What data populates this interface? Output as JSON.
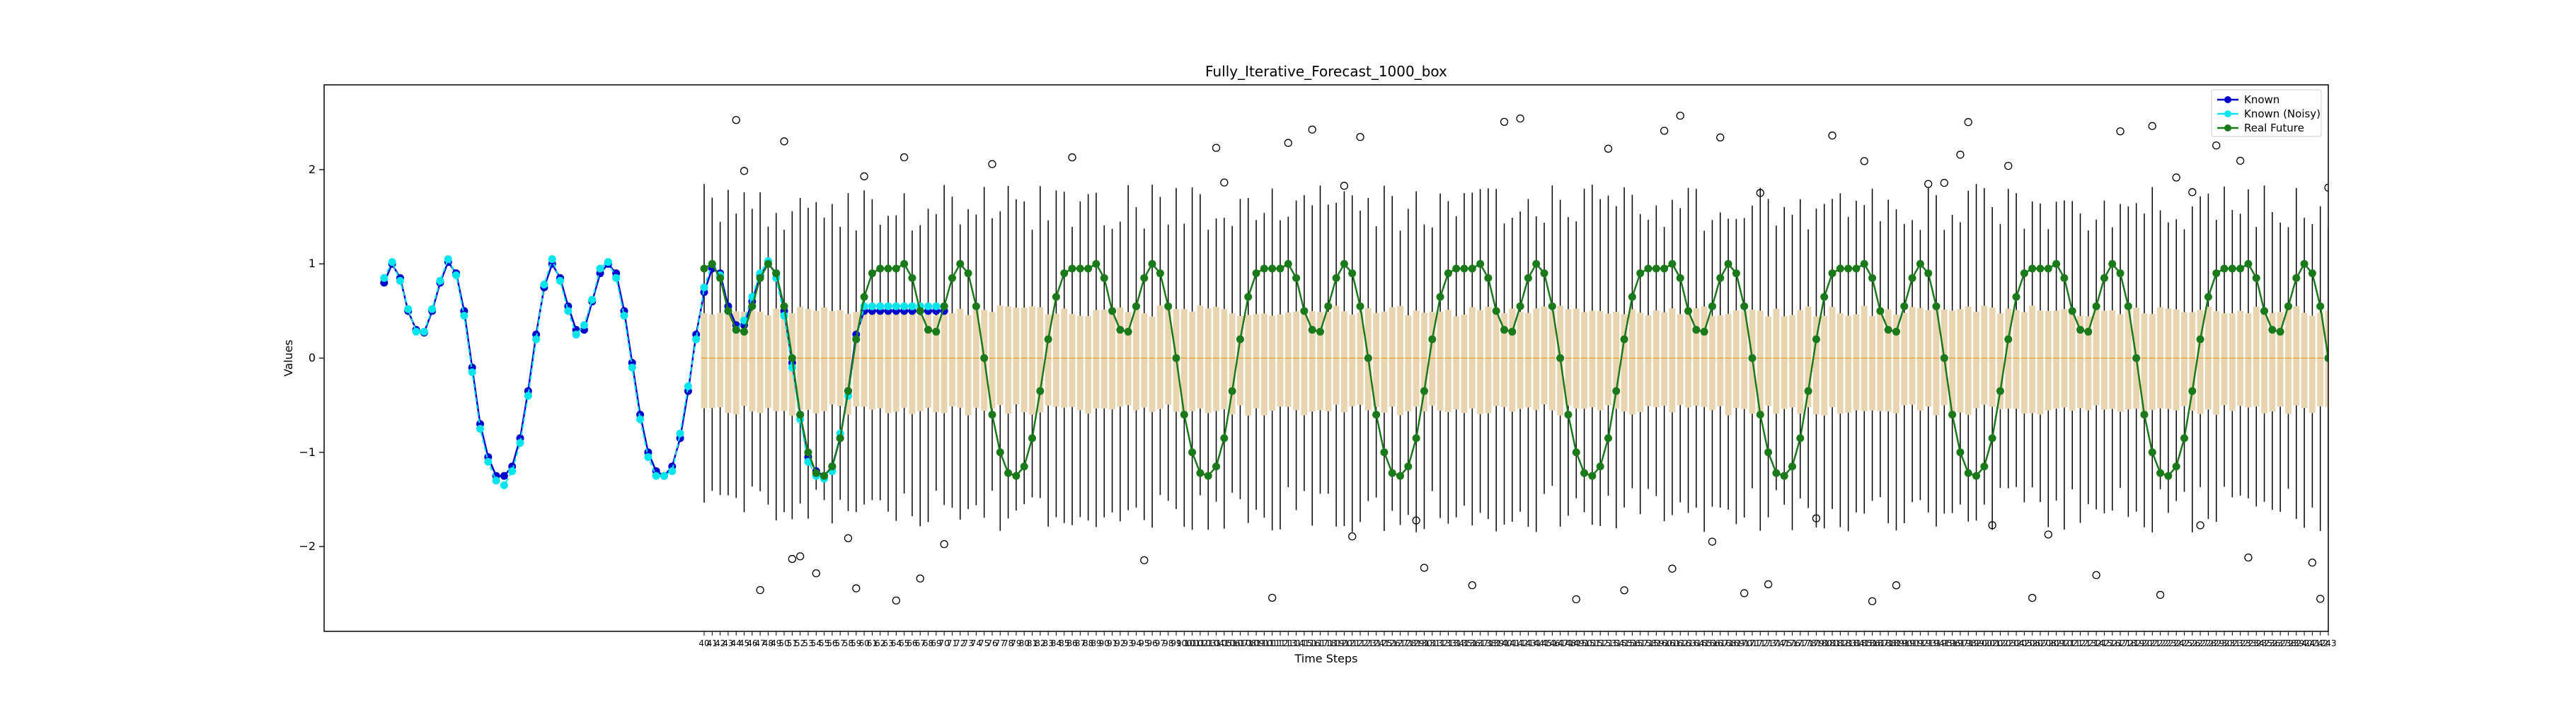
{
  "chart_data": {
    "type": "line",
    "title": "Fully_Iterative_Forecast_1000_box",
    "xlabel": "Time Steps",
    "ylabel": "Values",
    "xlim": [
      -7.5,
      243
    ],
    "ylim": [
      -2.9,
      2.9
    ],
    "y_ticks": [
      -2,
      -1,
      0,
      1,
      2
    ],
    "grid": false,
    "legend_placement": "top-right",
    "x_tick_labels_start": 40,
    "x_tick_labels_end": 243,
    "series": [
      {
        "name": "Known",
        "color": "#0000cd",
        "marker": "circle",
        "x": [
          0,
          1,
          2,
          3,
          4,
          5,
          6,
          7,
          8,
          9,
          10,
          11,
          12,
          13,
          14,
          15,
          16,
          17,
          18,
          19,
          20,
          21,
          22,
          23,
          24,
          25,
          26,
          27,
          28,
          29,
          30,
          31,
          32,
          33,
          34,
          35,
          36,
          37,
          38,
          39,
          40,
          41,
          42,
          43,
          44,
          45,
          46,
          47,
          48,
          49,
          50,
          51,
          52,
          53,
          54,
          55,
          56,
          57,
          58,
          59,
          60,
          61,
          62,
          63,
          64,
          65,
          66,
          67,
          68,
          69,
          70
        ],
        "values": [
          0.8,
          1.0,
          0.85,
          0.5,
          0.3,
          0.27,
          0.5,
          0.8,
          1.02,
          0.9,
          0.5,
          -0.1,
          -0.7,
          -1.05,
          -1.25,
          -1.25,
          -1.15,
          -0.85,
          -0.35,
          0.25,
          0.75,
          1.0,
          0.85,
          0.55,
          0.3,
          0.3,
          0.6,
          0.9,
          1.0,
          0.9,
          0.5,
          -0.05,
          -0.6,
          -1.0,
          -1.2,
          -1.25,
          -1.15,
          -0.85,
          -0.35,
          0.25,
          0.7,
          0.95,
          0.9,
          0.55,
          0.35,
          0.35,
          0.6,
          0.88,
          1.0,
          0.9,
          0.5,
          -0.05,
          -0.6,
          -1.05,
          -1.2,
          -1.25,
          -1.15,
          -0.85,
          -0.35,
          0.25,
          0.5,
          0.5,
          0.5,
          0.5,
          0.5,
          0.5,
          0.5,
          0.5,
          0.5,
          0.5,
          0.5
        ]
      },
      {
        "name": "Known (Noisy)",
        "color": "#00e5ee",
        "marker": "circle",
        "x": [
          0,
          1,
          2,
          3,
          4,
          5,
          6,
          7,
          8,
          9,
          10,
          11,
          12,
          13,
          14,
          15,
          16,
          17,
          18,
          19,
          20,
          21,
          22,
          23,
          24,
          25,
          26,
          27,
          28,
          29,
          30,
          31,
          32,
          33,
          34,
          35,
          36,
          37,
          38,
          39,
          40,
          41,
          42,
          43,
          44,
          45,
          46,
          47,
          48,
          49,
          50,
          51,
          52,
          53,
          54,
          55,
          56,
          57,
          58,
          59,
          60,
          61,
          62,
          63,
          64,
          65,
          66,
          67,
          68,
          69,
          70
        ],
        "values": [
          0.85,
          1.02,
          0.82,
          0.52,
          0.28,
          0.28,
          0.52,
          0.82,
          1.05,
          0.88,
          0.45,
          -0.15,
          -0.75,
          -1.1,
          -1.3,
          -1.35,
          -1.2,
          -0.9,
          -0.4,
          0.2,
          0.78,
          1.05,
          0.82,
          0.5,
          0.25,
          0.35,
          0.62,
          0.95,
          1.02,
          0.85,
          0.45,
          -0.1,
          -0.65,
          -1.05,
          -1.25,
          -1.25,
          -1.2,
          -0.8,
          -0.3,
          0.2,
          0.75,
          1.0,
          0.88,
          0.5,
          0.3,
          0.4,
          0.65,
          0.9,
          1.03,
          0.85,
          0.45,
          -0.1,
          -0.65,
          -1.1,
          -1.25,
          -1.28,
          -1.2,
          -0.8,
          -0.4,
          0.2,
          0.55,
          0.55,
          0.55,
          0.55,
          0.55,
          0.55,
          0.55,
          0.55,
          0.55,
          0.55,
          0.55
        ]
      },
      {
        "name": "Real Future",
        "color": "#1a7a1a",
        "marker": "circle"
      }
    ],
    "real_future": {
      "x_start": 40,
      "x_end": 243,
      "pattern": "repeating sinusoid with double peaks near 1.0 and troughs near -1.25, period about 24 steps",
      "period": 24,
      "values_one_period": [
        0.95,
        1.0,
        0.85,
        0.5,
        0.3,
        0.28,
        0.55,
        0.85,
        1.0,
        0.9,
        0.55,
        0.0,
        -0.6,
        -1.0,
        -1.22,
        -1.25,
        -1.15,
        -0.85,
        -0.35,
        0.2,
        0.65,
        0.9,
        0.95,
        0.95
      ]
    },
    "boxplots": {
      "x_start": 40,
      "x_end": 243,
      "box_color": "#e8d5b0",
      "median_color": "#ff8c00",
      "whisker_color": "#000000",
      "box_q1": -0.55,
      "box_q3": 0.5,
      "median": 0.0,
      "whisker_low": -1.6,
      "whisker_high": 1.6
    }
  }
}
